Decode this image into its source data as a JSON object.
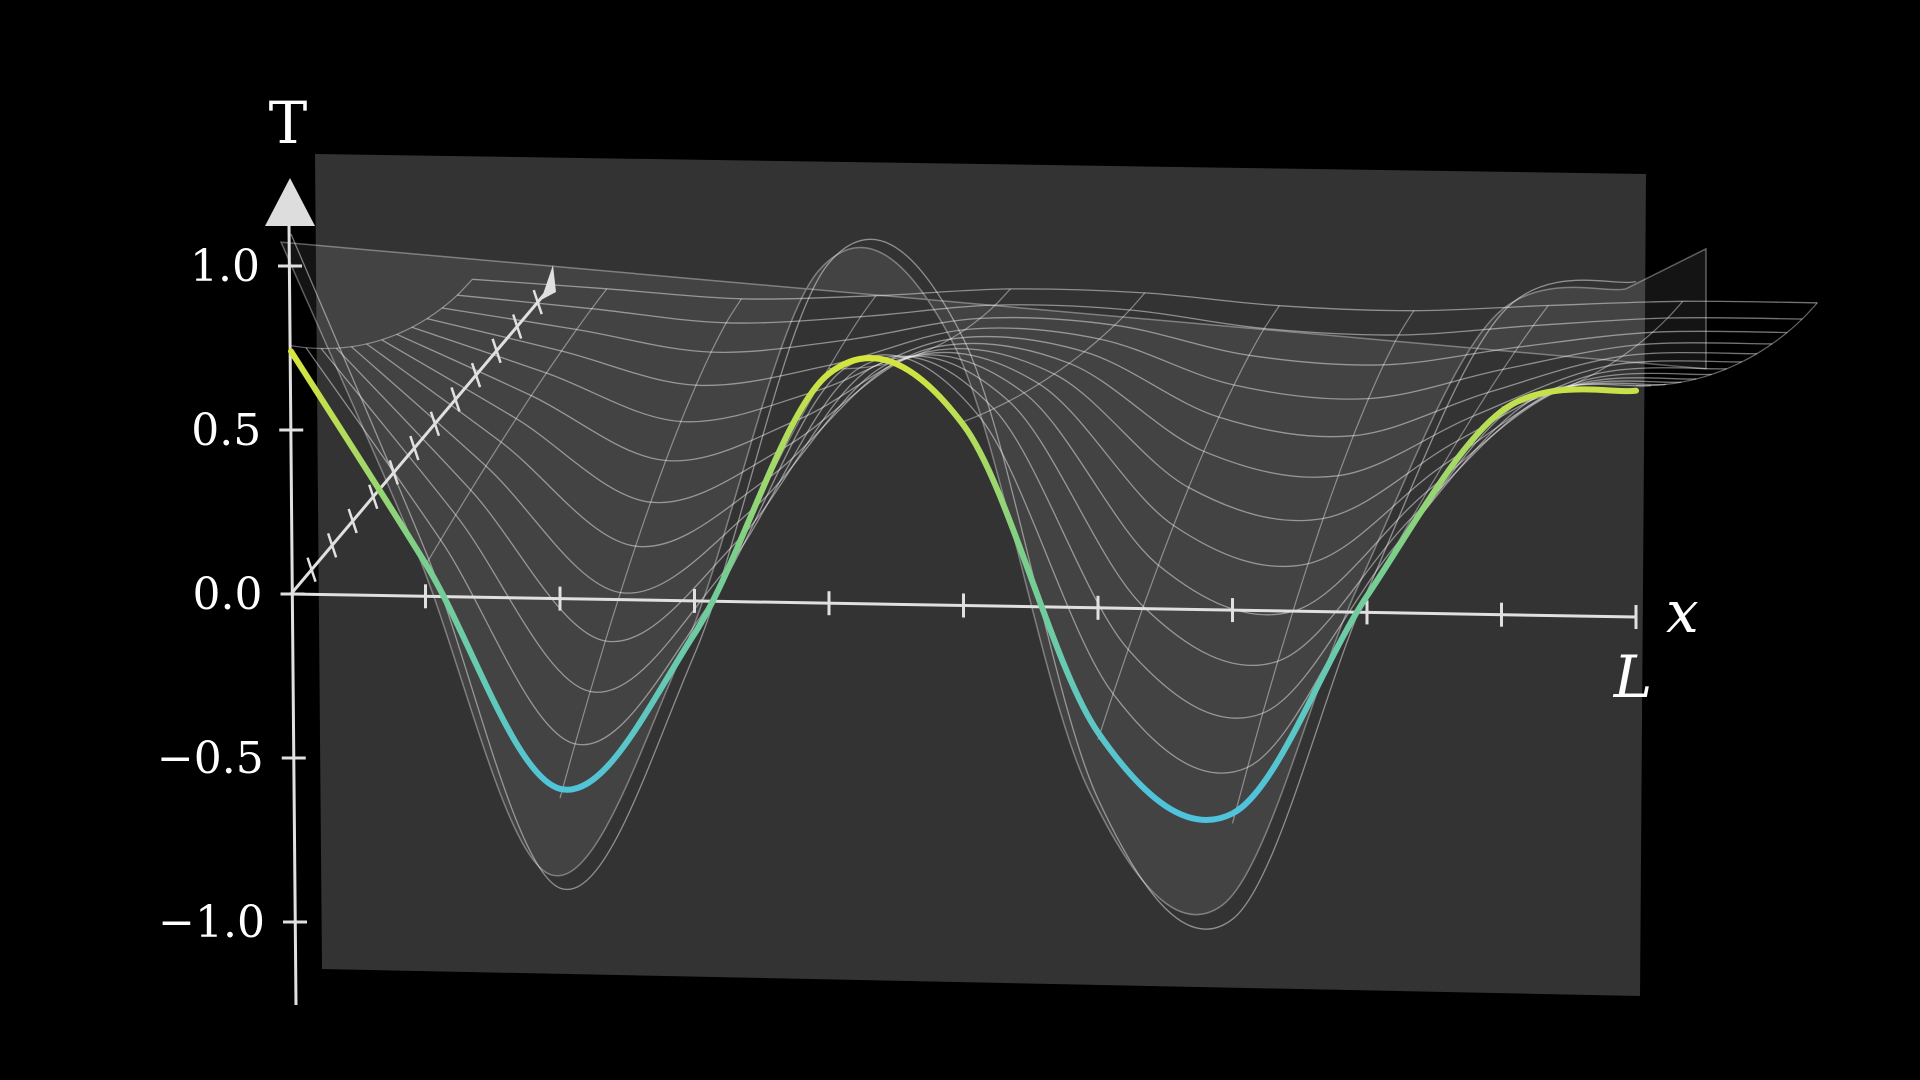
{
  "chart_data": {
    "type": "line",
    "title": "",
    "xlabel": "x",
    "ylabel": "T",
    "x_end_label": "L",
    "ylim": [
      -1.0,
      1.0
    ],
    "y_ticks": [
      "1.0",
      "0.5",
      "0.0",
      "−0.5",
      "−1.0"
    ],
    "y_tick_values": [
      1.0,
      0.5,
      0.0,
      -0.5,
      -1.0
    ],
    "x_tick_count": 10,
    "depth_tick_count": 12,
    "grid": true,
    "series": [
      {
        "x": [
          0.0,
          0.1,
          0.2,
          0.3,
          0.4,
          0.5,
          0.6,
          0.7,
          0.8,
          0.9,
          1.0
        ],
        "values": [
          0.74,
          0.1,
          -0.58,
          -0.1,
          0.7,
          0.55,
          -0.38,
          -0.62,
          0.05,
          0.62,
          0.69
        ]
      }
    ],
    "colors": {
      "background": "#000000",
      "plane": "#333333",
      "curve_high": "#d9e63a",
      "curve_low": "#4fc3dc",
      "axis": "#e0e0e0"
    }
  }
}
